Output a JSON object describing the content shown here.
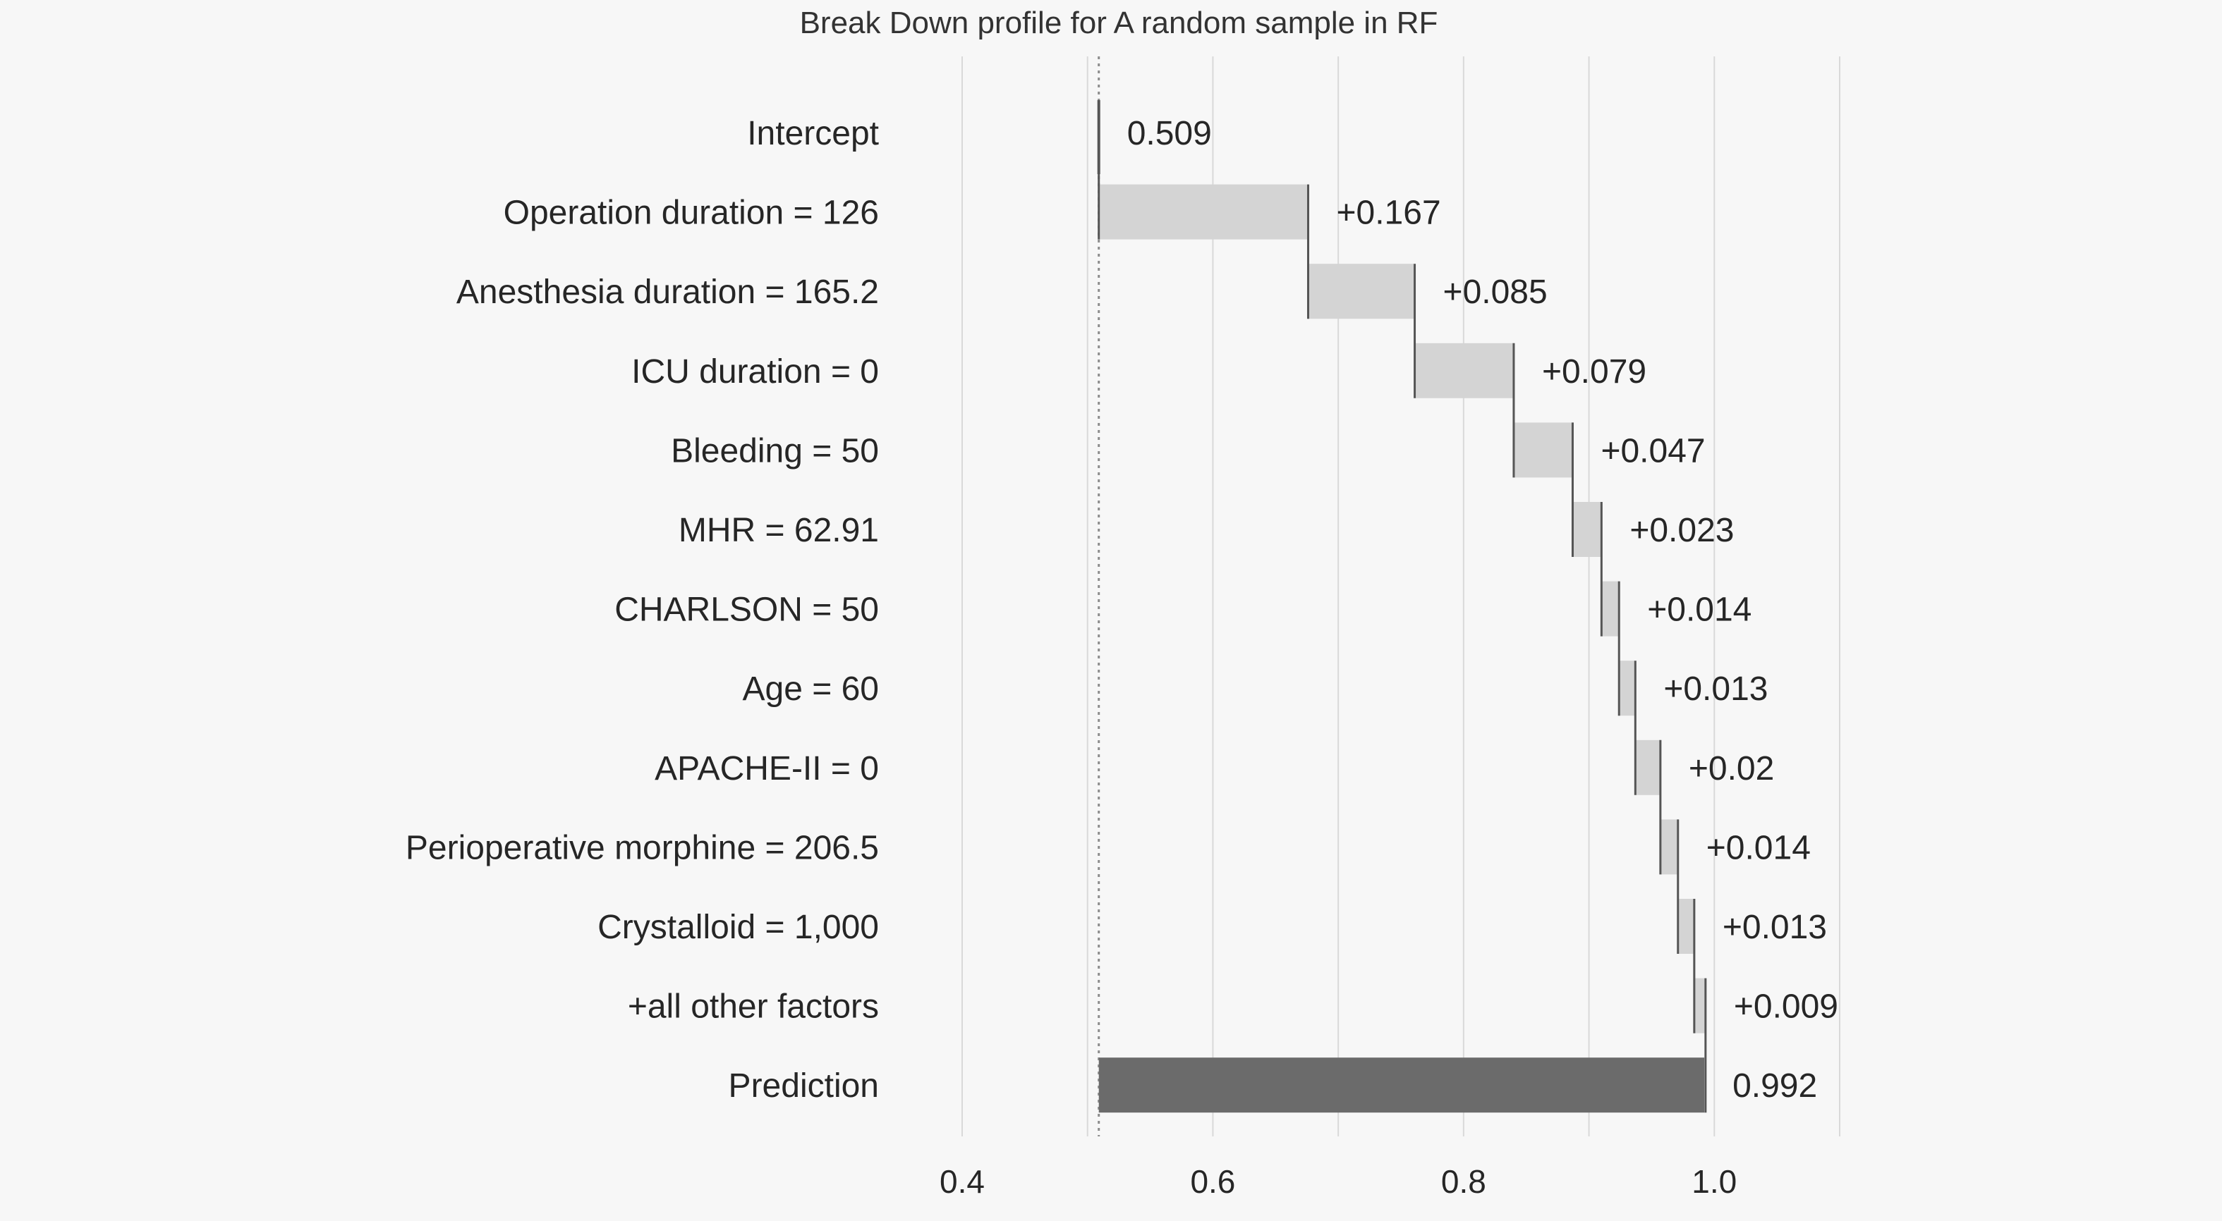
{
  "chart_data": {
    "type": "bar",
    "subtype": "waterfall",
    "title": "Break Down profile for A random sample in RF",
    "categories": [
      "Intercept",
      "Operation duration = 126",
      "Anesthesia duration = 165.2",
      "ICU duration = 0",
      "Bleeding = 50",
      "MHR = 62.91",
      "CHARLSON = 50",
      "Age = 60",
      "APACHE-II = 0",
      "Perioperative morphine = 206.5",
      "Crystalloid = 1,000",
      "+all other factors",
      "Prediction"
    ],
    "values": [
      0.509,
      0.167,
      0.085,
      0.079,
      0.047,
      0.023,
      0.014,
      0.013,
      0.02,
      0.014,
      0.013,
      0.009,
      0.992
    ],
    "value_labels": [
      "0.509",
      "+0.167",
      "+0.085",
      "+0.079",
      "+0.047",
      "+0.023",
      "+0.014",
      "+0.013",
      "+0.02",
      "+0.014",
      "+0.013",
      "+0.009",
      "0.992"
    ],
    "xlim": [
      0.4,
      1.1
    ],
    "xticks": [
      0.4,
      0.6,
      0.8,
      1.0
    ],
    "xtick_labels": [
      "0.4",
      "0.6",
      "0.8",
      "1.0"
    ],
    "baseline": 0.509,
    "grid": true,
    "colors": {
      "contribution": "#d4d4d4",
      "prediction": "#6b6b6b",
      "connector": "#555555",
      "grid": "#d9d9d9",
      "baseline": "#8c8c8c",
      "background": "#f7f7f7"
    }
  }
}
